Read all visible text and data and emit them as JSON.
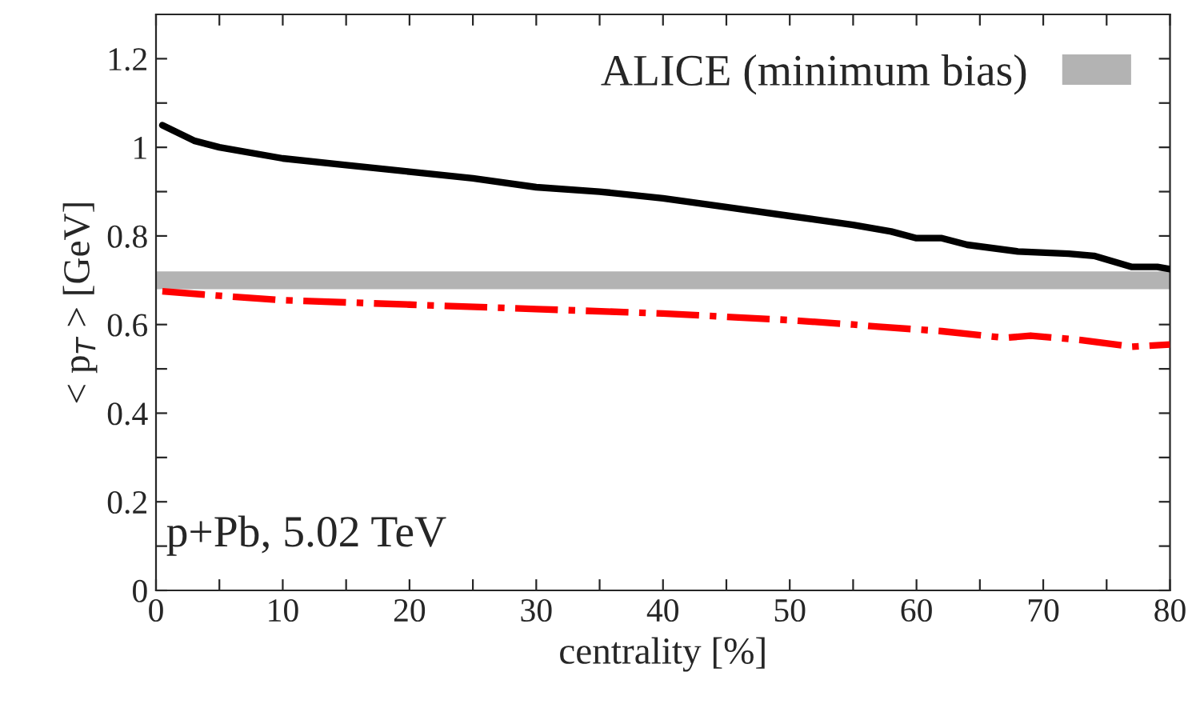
{
  "chart_data": {
    "type": "line",
    "xlabel": "centrality [%]",
    "ylabel": "< p$_{T}$ > [GeV]",
    "annotations": [
      "p+Pb, 5.02 TeV"
    ],
    "xlim": [
      0,
      80
    ],
    "ylim": [
      0,
      1.3
    ],
    "xticks": [
      0,
      {
        "value": 5,
        "label": null
      },
      10,
      {
        "value": 15,
        "label": null
      },
      20,
      {
        "value": 25,
        "label": null
      },
      30,
      {
        "value": 35,
        "label": null
      },
      40,
      {
        "value": 45,
        "label": null
      },
      50,
      {
        "value": 55,
        "label": null
      },
      60,
      {
        "value": 65,
        "label": null
      },
      70,
      {
        "value": 75,
        "label": null
      },
      80
    ],
    "yticks": [
      0,
      {
        "value": 0.1,
        "label": null
      },
      0.2,
      {
        "value": 0.3,
        "label": null
      },
      0.4,
      {
        "value": 0.5,
        "label": null
      },
      0.6,
      {
        "value": 0.7,
        "label": null
      },
      0.8,
      {
        "value": 0.9,
        "label": null
      },
      1,
      {
        "value": 1.1,
        "label": null
      },
      1.2
    ],
    "series": [
      {
        "color": "#000000",
        "line_style": "solid",
        "x": [
          0.5,
          3,
          5,
          10,
          15,
          20,
          25,
          30,
          35,
          40,
          45,
          50,
          55,
          58,
          60,
          62,
          64,
          68,
          72,
          74,
          77,
          79,
          80
        ],
        "values": [
          1.05,
          1.015,
          1.0,
          0.975,
          0.96,
          0.945,
          0.93,
          0.91,
          0.9,
          0.885,
          0.865,
          0.845,
          0.825,
          0.81,
          0.795,
          0.795,
          0.78,
          0.765,
          0.76,
          0.755,
          0.73,
          0.73,
          0.725
        ]
      },
      {
        "color": "#ff0000",
        "line_style": "dashdot",
        "x": [
          0.5,
          5,
          10,
          20,
          30,
          40,
          50,
          55,
          57,
          62,
          67,
          69,
          73,
          77,
          80
        ],
        "values": [
          0.675,
          0.665,
          0.655,
          0.645,
          0.635,
          0.625,
          0.61,
          0.6,
          0.595,
          0.585,
          0.57,
          0.575,
          0.565,
          0.55,
          0.555
        ]
      }
    ],
    "bands": [
      {
        "axis": "y",
        "from": 0.68,
        "to": 0.72,
        "label": "ALICE (minimum bias)",
        "color": "#b3b3b3"
      }
    ],
    "legend": "top right",
    "grid": false
  }
}
